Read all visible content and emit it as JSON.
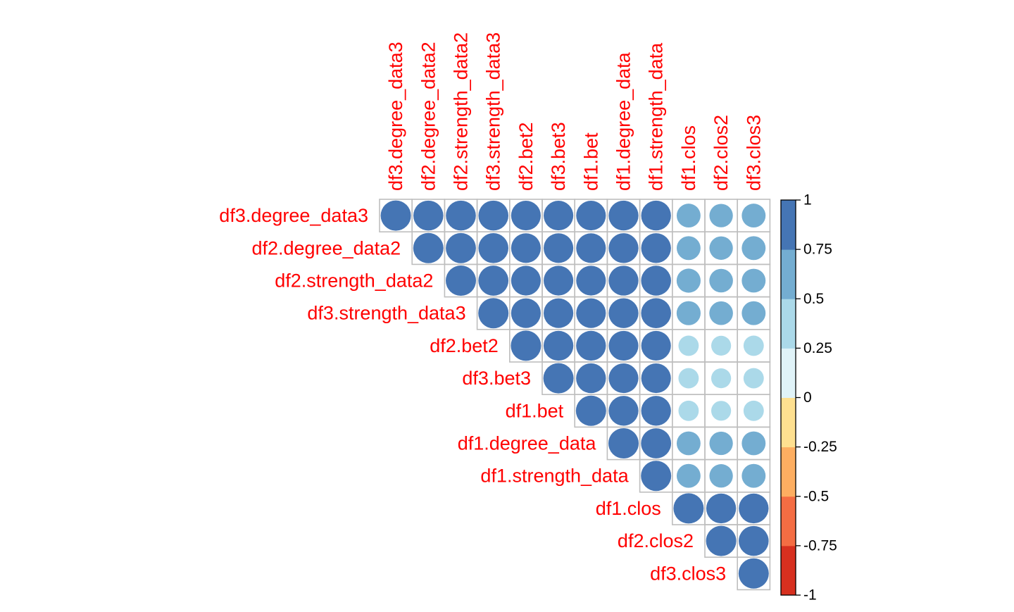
{
  "chart_data": {
    "type": "heatmap",
    "method": "circle",
    "triangle": "upper",
    "variables": [
      "df3.degree_data3",
      "df2.degree_data2",
      "df2.strength_data2",
      "df3.strength_data3",
      "df2.bet2",
      "df3.bet3",
      "df1.bet",
      "df1.degree_data",
      "df1.strength_data",
      "df1.clos",
      "df2.clos2",
      "df3.clos3"
    ],
    "matrix": [
      [
        1.0,
        0.98,
        0.98,
        0.98,
        0.96,
        0.96,
        0.96,
        0.97,
        0.97,
        0.62,
        0.6,
        0.62
      ],
      [
        0.98,
        1.0,
        0.99,
        0.98,
        0.96,
        0.96,
        0.96,
        0.97,
        0.97,
        0.62,
        0.6,
        0.62
      ],
      [
        0.98,
        0.99,
        1.0,
        0.99,
        0.96,
        0.96,
        0.96,
        0.97,
        0.98,
        0.63,
        0.61,
        0.62
      ],
      [
        0.98,
        0.98,
        0.99,
        1.0,
        0.96,
        0.96,
        0.96,
        0.97,
        0.98,
        0.63,
        0.61,
        0.62
      ],
      [
        0.96,
        0.96,
        0.96,
        0.96,
        1.0,
        0.97,
        0.97,
        0.96,
        0.96,
        0.45,
        0.43,
        0.45
      ],
      [
        0.96,
        0.96,
        0.96,
        0.96,
        0.97,
        1.0,
        0.97,
        0.96,
        0.96,
        0.45,
        0.43,
        0.45
      ],
      [
        0.96,
        0.96,
        0.96,
        0.96,
        0.97,
        0.97,
        1.0,
        0.97,
        0.97,
        0.45,
        0.43,
        0.45
      ],
      [
        0.97,
        0.97,
        0.97,
        0.97,
        0.96,
        0.96,
        0.97,
        1.0,
        0.99,
        0.62,
        0.6,
        0.62
      ],
      [
        0.97,
        0.97,
        0.98,
        0.98,
        0.96,
        0.96,
        0.97,
        0.99,
        1.0,
        0.62,
        0.6,
        0.62
      ],
      [
        0.62,
        0.62,
        0.63,
        0.63,
        0.45,
        0.45,
        0.45,
        0.62,
        0.62,
        1.0,
        0.97,
        0.97
      ],
      [
        0.6,
        0.6,
        0.61,
        0.61,
        0.43,
        0.43,
        0.43,
        0.6,
        0.6,
        0.97,
        1.0,
        0.98
      ],
      [
        0.62,
        0.62,
        0.62,
        0.62,
        0.45,
        0.45,
        0.45,
        0.62,
        0.62,
        0.97,
        0.98,
        1.0
      ]
    ],
    "color_scale": {
      "limits": [
        -1,
        1
      ],
      "breaks": [
        -1,
        -0.75,
        -0.5,
        -0.25,
        0,
        0.25,
        0.5,
        0.75,
        1
      ],
      "colors": [
        "#D7301F",
        "#F46D43",
        "#FDAE61",
        "#FEE090",
        "#E0F3F8",
        "#ABD9E9",
        "#74ADD1",
        "#4575B4"
      ],
      "tick_labels": [
        "1",
        "0.75",
        "0.5",
        "0.25",
        "0",
        "-0.25",
        "-0.5",
        "-0.75",
        "-1"
      ]
    },
    "label_color": "#FF0000",
    "grid_color": "#BEBEBE",
    "grid": true,
    "legend_position": "right"
  }
}
